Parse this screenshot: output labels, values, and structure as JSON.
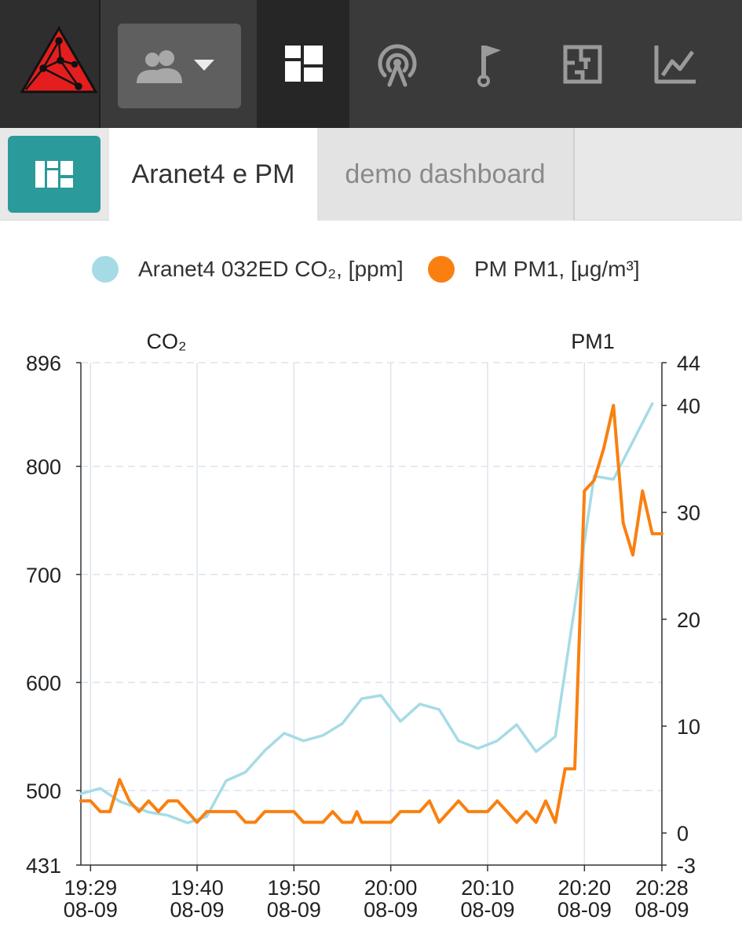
{
  "topbar": {
    "nav": [
      {
        "icon": "network-logo-icon"
      },
      {
        "icon": "users-icon",
        "has_dropdown": true
      },
      {
        "icon": "dashboard-icon",
        "active": true
      },
      {
        "icon": "broadcast-icon"
      },
      {
        "icon": "flag-icon"
      },
      {
        "icon": "floor-plan-icon"
      },
      {
        "icon": "line-chart-icon"
      }
    ],
    "logo_color": "#e41e1e"
  },
  "tabs": {
    "menu_icon": "dashboard-grid-icon",
    "menu_color": "#2a9a9a",
    "items": [
      {
        "label": "Aranet4 e PM",
        "active": true
      },
      {
        "label": "demo dashboard",
        "active": false
      }
    ]
  },
  "chart_data": {
    "type": "line",
    "series": [
      {
        "name": "Aranet4 032ED CO₂, [ppm]",
        "color": "#a6dbe6",
        "axis": "left",
        "x": [
          "19:28",
          "19:30",
          "19:32",
          "19:35",
          "19:37",
          "19:39",
          "19:41",
          "19:43",
          "19:45",
          "19:47",
          "19:49",
          "19:51",
          "19:53",
          "19:55",
          "19:57",
          "19:59",
          "20:01",
          "20:03",
          "20:05",
          "20:07",
          "20:09",
          "20:11",
          "20:13",
          "20:15",
          "20:17",
          "20:21",
          "20:23",
          "20:27"
        ],
        "values": [
          497,
          502,
          490,
          480,
          477,
          470,
          476,
          509,
          517,
          537,
          553,
          546,
          551,
          562,
          585,
          588,
          564,
          580,
          575,
          546,
          539,
          546,
          561,
          536,
          550,
          791,
          788,
          858
        ]
      },
      {
        "name": "PM PM1, [μg/m³]",
        "color": "#f98010",
        "axis": "right",
        "x": [
          "19:28",
          "19:29",
          "19:30",
          "19:31",
          "19:32",
          "19:33",
          "19:34",
          "19:35",
          "19:36",
          "19:37",
          "19:38",
          "19:39",
          "19:40",
          "19:41",
          "19:42",
          "19:43",
          "19:44",
          "19:45",
          "19:46",
          "19:47",
          "19:48",
          "19:49",
          "19:50",
          "19:51",
          "19:52",
          "19:53",
          "19:54",
          "19:55",
          "19:56",
          "19:56.5",
          "19:57",
          "19:58",
          "19:59",
          "20:00",
          "20:01",
          "20:02",
          "20:03",
          "20:04",
          "20:05",
          "20:06",
          "20:07",
          "20:08",
          "20:09",
          "20:10",
          "20:11",
          "20:12",
          "20:13",
          "20:14",
          "20:15",
          "20:16",
          "20:17",
          "20:18",
          "20:19",
          "20:20",
          "20:21",
          "20:22",
          "20:23",
          "20:24",
          "20:25",
          "20:26",
          "20:27",
          "20:28"
        ],
        "values": [
          3,
          3,
          2,
          2,
          5,
          3,
          2,
          3,
          2,
          3,
          3,
          2,
          1,
          2,
          2,
          2,
          2,
          1,
          1,
          2,
          2,
          2,
          2,
          1,
          1,
          1,
          2,
          1,
          1,
          2,
          1,
          1,
          1,
          1,
          2,
          2,
          2,
          3,
          1,
          2,
          3,
          2,
          2,
          2,
          3,
          2,
          1,
          2,
          1,
          3,
          1,
          6,
          6,
          32,
          33,
          36,
          40,
          29,
          26,
          32,
          28,
          28
        ]
      }
    ],
    "y_left": {
      "label": "CO₂",
      "ticks": [
        431,
        500,
        600,
        700,
        800,
        896
      ],
      "range": [
        431,
        896
      ]
    },
    "y_right": {
      "label": "PM1",
      "ticks": [
        -3,
        0,
        10,
        20,
        30,
        40,
        44
      ],
      "range": [
        -3,
        44
      ]
    },
    "x_ticks": [
      {
        "time": "19:29",
        "date": "08-09"
      },
      {
        "time": "19:40",
        "date": "08-09"
      },
      {
        "time": "19:50",
        "date": "08-09"
      },
      {
        "time": "20:00",
        "date": "08-09"
      },
      {
        "time": "20:10",
        "date": "08-09"
      },
      {
        "time": "20:20",
        "date": "08-09"
      },
      {
        "time": "20:28",
        "date": "08-09"
      }
    ],
    "x_range": [
      "19:28",
      "20:28"
    ],
    "grid": true,
    "legend_position": "top"
  }
}
